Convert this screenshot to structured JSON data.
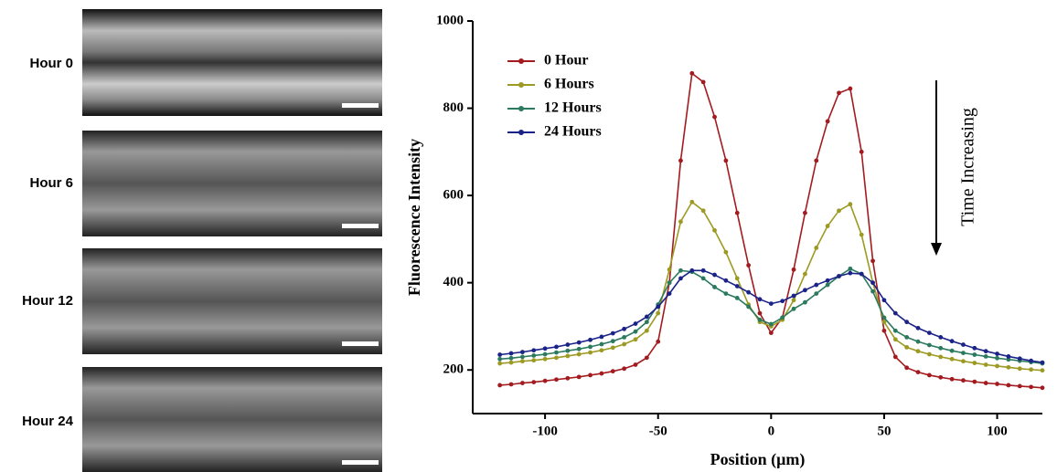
{
  "panels": [
    "Hour 0",
    "Hour 6",
    "Hour 12",
    "Hour 24"
  ],
  "chart_data": {
    "type": "line",
    "x_label": "Position (μm)",
    "y_label": "Fluorescence Intensity",
    "annotation": "Time Increasing",
    "legend": "upper left",
    "xlim": [
      -132,
      120
    ],
    "xticks": [
      -100,
      -50,
      0,
      50,
      100
    ],
    "ylim": [
      100,
      1000
    ],
    "yticks": [
      200,
      400,
      600,
      800,
      1000
    ],
    "x": [
      -120,
      -115,
      -110,
      -105,
      -100,
      -95,
      -90,
      -85,
      -80,
      -75,
      -70,
      -65,
      -60,
      -55,
      -50,
      -45,
      -40,
      -35,
      -30,
      -25,
      -20,
      -15,
      -10,
      -5,
      0,
      5,
      10,
      15,
      20,
      25,
      30,
      35,
      40,
      45,
      50,
      55,
      60,
      65,
      70,
      75,
      80,
      85,
      90,
      95,
      100,
      105,
      110,
      115,
      120
    ],
    "series": [
      {
        "name": "0 Hour",
        "color": "#a31b1f",
        "values": [
          165,
          167,
          170,
          172,
          175,
          178,
          181,
          184,
          188,
          192,
          197,
          203,
          212,
          228,
          265,
          400,
          680,
          880,
          860,
          780,
          680,
          560,
          440,
          330,
          285,
          320,
          430,
          560,
          680,
          770,
          835,
          845,
          700,
          450,
          290,
          230,
          205,
          195,
          188,
          183,
          179,
          176,
          173,
          170,
          168,
          165,
          163,
          161,
          159
        ]
      },
      {
        "name": "6 Hours",
        "color": "#9c9a22",
        "values": [
          215,
          217,
          220,
          222,
          225,
          228,
          232,
          236,
          240,
          245,
          251,
          259,
          270,
          290,
          330,
          430,
          540,
          585,
          565,
          520,
          470,
          410,
          350,
          310,
          300,
          315,
          360,
          420,
          480,
          530,
          565,
          580,
          510,
          400,
          310,
          270,
          252,
          243,
          236,
          230,
          225,
          220,
          216,
          212,
          209,
          206,
          203,
          201,
          199
        ]
      },
      {
        "name": "12 Hours",
        "color": "#2b7a5e",
        "values": [
          225,
          227,
          230,
          233,
          236,
          240,
          244,
          248,
          253,
          259,
          266,
          275,
          288,
          310,
          350,
          400,
          428,
          425,
          410,
          390,
          375,
          365,
          345,
          315,
          305,
          320,
          340,
          355,
          375,
          395,
          415,
          432,
          420,
          380,
          320,
          290,
          275,
          265,
          257,
          250,
          244,
          239,
          235,
          231,
          227,
          224,
          221,
          218,
          215
        ]
      },
      {
        "name": "24 Hours",
        "color": "#1b2388",
        "values": [
          235,
          238,
          241,
          245,
          249,
          253,
          258,
          263,
          269,
          276,
          284,
          294,
          306,
          322,
          345,
          375,
          410,
          428,
          428,
          418,
          405,
          392,
          378,
          362,
          352,
          358,
          370,
          383,
          395,
          405,
          415,
          422,
          420,
          400,
          360,
          330,
          310,
          296,
          285,
          275,
          266,
          258,
          250,
          243,
          237,
          231,
          226,
          221,
          217
        ]
      }
    ]
  }
}
